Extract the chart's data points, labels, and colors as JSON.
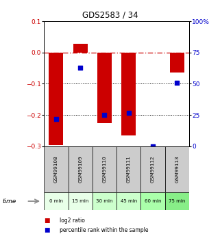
{
  "title": "GDS2583 / 34",
  "samples": [
    "GSM99108",
    "GSM99109",
    "GSM99110",
    "GSM99111",
    "GSM99112",
    "GSM99113"
  ],
  "time_labels": [
    "0 min",
    "15 min",
    "30 min",
    "45 min",
    "60 min",
    "75 min"
  ],
  "log2_ratio": [
    -0.295,
    0.028,
    -0.225,
    -0.265,
    0.0,
    -0.065
  ],
  "percentile_rank": [
    22,
    63,
    25,
    27,
    0,
    51
  ],
  "bar_color": "#cc0000",
  "dot_color": "#0000cc",
  "ylim_left": [
    -0.3,
    0.1
  ],
  "ylim_right": [
    0,
    100
  ],
  "yticks_left": [
    0.1,
    0.0,
    -0.1,
    -0.2,
    -0.3
  ],
  "yticks_right": [
    100,
    75,
    50,
    25,
    0
  ],
  "bar_width": 0.6,
  "time_colors": [
    "#e8ffe8",
    "#e8ffe8",
    "#ccffcc",
    "#ccffcc",
    "#aaffaa",
    "#88ee88"
  ],
  "legend_red": "log2 ratio",
  "legend_blue": "percentile rank within the sample",
  "background_color": "#ffffff",
  "plot_bg": "#ffffff",
  "gsm_bg": "#cccccc"
}
